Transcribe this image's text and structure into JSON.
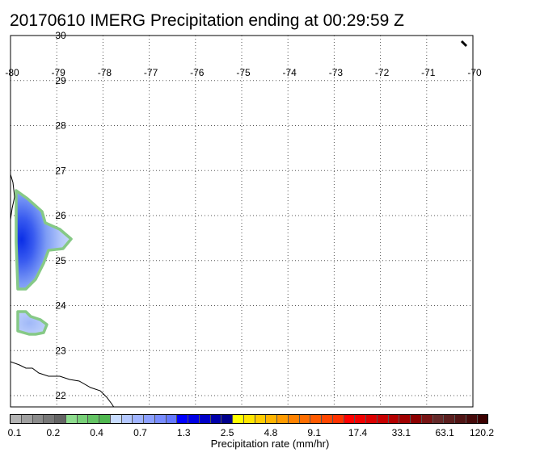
{
  "title": "20170610 IMERG Precipitation ending at 00:29:59 Z",
  "map": {
    "lon_range": [
      -80,
      -70
    ],
    "lat_range": [
      21.75,
      30
    ],
    "lon_ticks": [
      "-80",
      "-79",
      "-78",
      "-77",
      "-76",
      "-75",
      "-74",
      "-73",
      "-72",
      "-71",
      "-70"
    ],
    "lat_ticks": [
      "30",
      "29",
      "28",
      "27",
      "26",
      "25",
      "24",
      "23",
      "22"
    ],
    "gridlines": "dotted"
  },
  "precip_areas": [
    {
      "name": "precip-area-north",
      "lon_center": -79.7,
      "lat_center": 25.6,
      "max_rate_class": "2.5"
    },
    {
      "name": "precip-area-south",
      "lon_center": -79.6,
      "lat_center": 23.8,
      "max_rate_class": "0.7"
    }
  ],
  "colorbar": {
    "label": "Precipitation rate (mm/hr)",
    "tick_labels": [
      "0.1",
      "0.2",
      "0.4",
      "0.7",
      "1.3",
      "2.5",
      "4.8",
      "9.1",
      "17.4",
      "33.1",
      "63.1",
      "120.2"
    ],
    "colors": [
      "#b4b4b4",
      "#a0a0a0",
      "#8c8c8c",
      "#787878",
      "#646464",
      "#8edc8e",
      "#78d078",
      "#64c464",
      "#50b850",
      "#c8dcff",
      "#b4c8ff",
      "#a0b4ff",
      "#8ca0ff",
      "#788cff",
      "#6478ff",
      "#0000ff",
      "#0000e6",
      "#0000c8",
      "#0000aa",
      "#00008c",
      "#ffff00",
      "#ffe600",
      "#ffcc00",
      "#ffb400",
      "#ff9b00",
      "#ff8200",
      "#ff6e00",
      "#ff5a00",
      "#ff4600",
      "#ff3200",
      "#ff0000",
      "#f00000",
      "#dc0000",
      "#c80000",
      "#b40000",
      "#a00000",
      "#8c0000",
      "#781414",
      "#642828",
      "#5a1e1e",
      "#501414",
      "#460a0a",
      "#3c0000"
    ]
  }
}
